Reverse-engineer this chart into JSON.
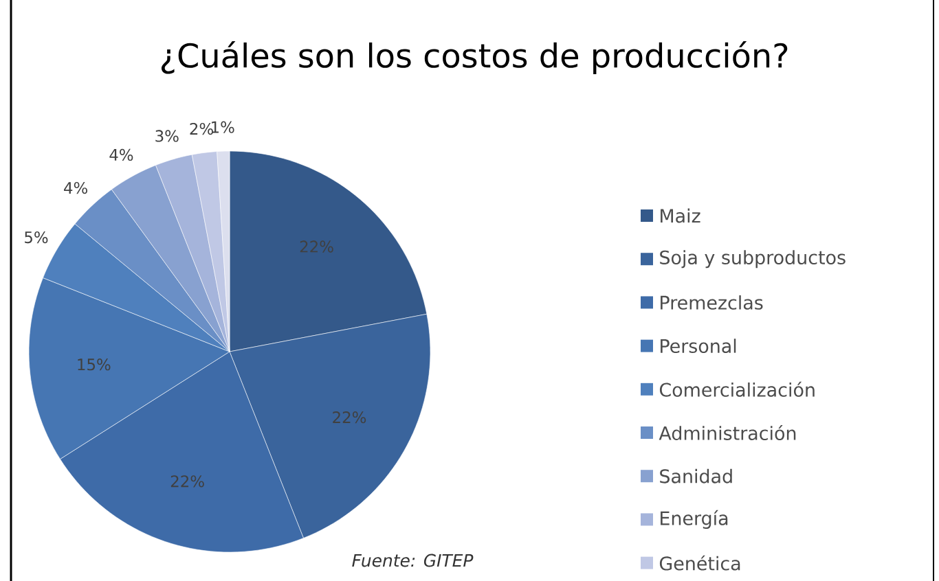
{
  "chart_data": {
    "type": "pie",
    "title": "¿Cuáles son los costos de producción?",
    "categories": [
      "Maiz",
      "Soja y subproductos",
      "Premezclas",
      "Personal",
      "Comercialización",
      "Administración",
      "Sanidad",
      "Energía",
      "Genética",
      null
    ],
    "values": [
      22,
      22,
      22,
      15,
      5,
      4,
      4,
      3,
      2,
      1
    ],
    "value_labels": [
      "22%",
      "22%",
      "22%",
      "15%",
      "5%",
      "4%",
      "4%",
      "3%",
      "2%",
      "1%"
    ],
    "colors": [
      "#34598a",
      "#3a649c",
      "#3e6ba8",
      "#4676b3",
      "#4f80bd",
      "#6a8fc6",
      "#88a1d0",
      "#a5b4db",
      "#c0c8e5",
      "#dcdfee"
    ],
    "legend": "right",
    "annotations": [
      "*Fuente: GITEP*"
    ]
  }
}
